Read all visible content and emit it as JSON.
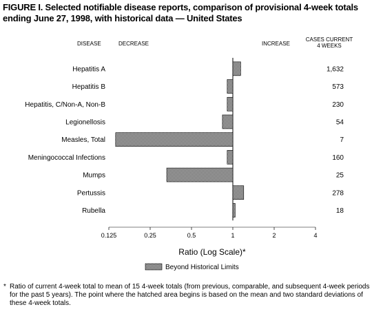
{
  "figure": {
    "title": "FIGURE I. Selected notifiable disease reports, comparison of provisional 4-week totals ending June 27, 1998, with historical data — United States",
    "footnote": "Ratio of current 4-week total to mean of 15 4-week totals (from previous, comparable, and subsequent 4-week periods for the past 5 years). The point where the hatched area begins is based on the mean and two standard deviations of these 4-week totals."
  },
  "headers": {
    "disease": "DISEASE",
    "decrease": "DECREASE",
    "increase": "INCREASE",
    "cases_line1": "CASES CURRENT",
    "cases_line2": "4 WEEKS"
  },
  "chart_data": {
    "type": "bar",
    "orientation": "horizontal",
    "x_scale": "log2",
    "xlabel": "Ratio (Log Scale)*",
    "xlim": [
      0.125,
      4
    ],
    "xticks": [
      0.125,
      0.25,
      0.5,
      1,
      2,
      4
    ],
    "xtick_labels": [
      "0.125",
      "0.25",
      "0.5",
      "1",
      "2",
      "4"
    ],
    "baseline": 1,
    "categories": [
      "Hepatitis A",
      "Hepatitis B",
      "Hepatitis, C/Non-A, Non-B",
      "Legionellosis",
      "Measles, Total",
      "Meningococcal Infections",
      "Mumps",
      "Pertussis",
      "Rubella"
    ],
    "values": [
      1.14,
      0.91,
      0.91,
      0.84,
      0.14,
      0.91,
      0.33,
      1.2,
      1.04
    ],
    "cases_current_4_weeks": [
      "1,632",
      "573",
      "230",
      "54",
      "7",
      "160",
      "25",
      "278",
      "18"
    ],
    "legend": {
      "label": "Beyond Historical Limits",
      "placement": "bottom-center"
    },
    "fill": "#222222"
  }
}
